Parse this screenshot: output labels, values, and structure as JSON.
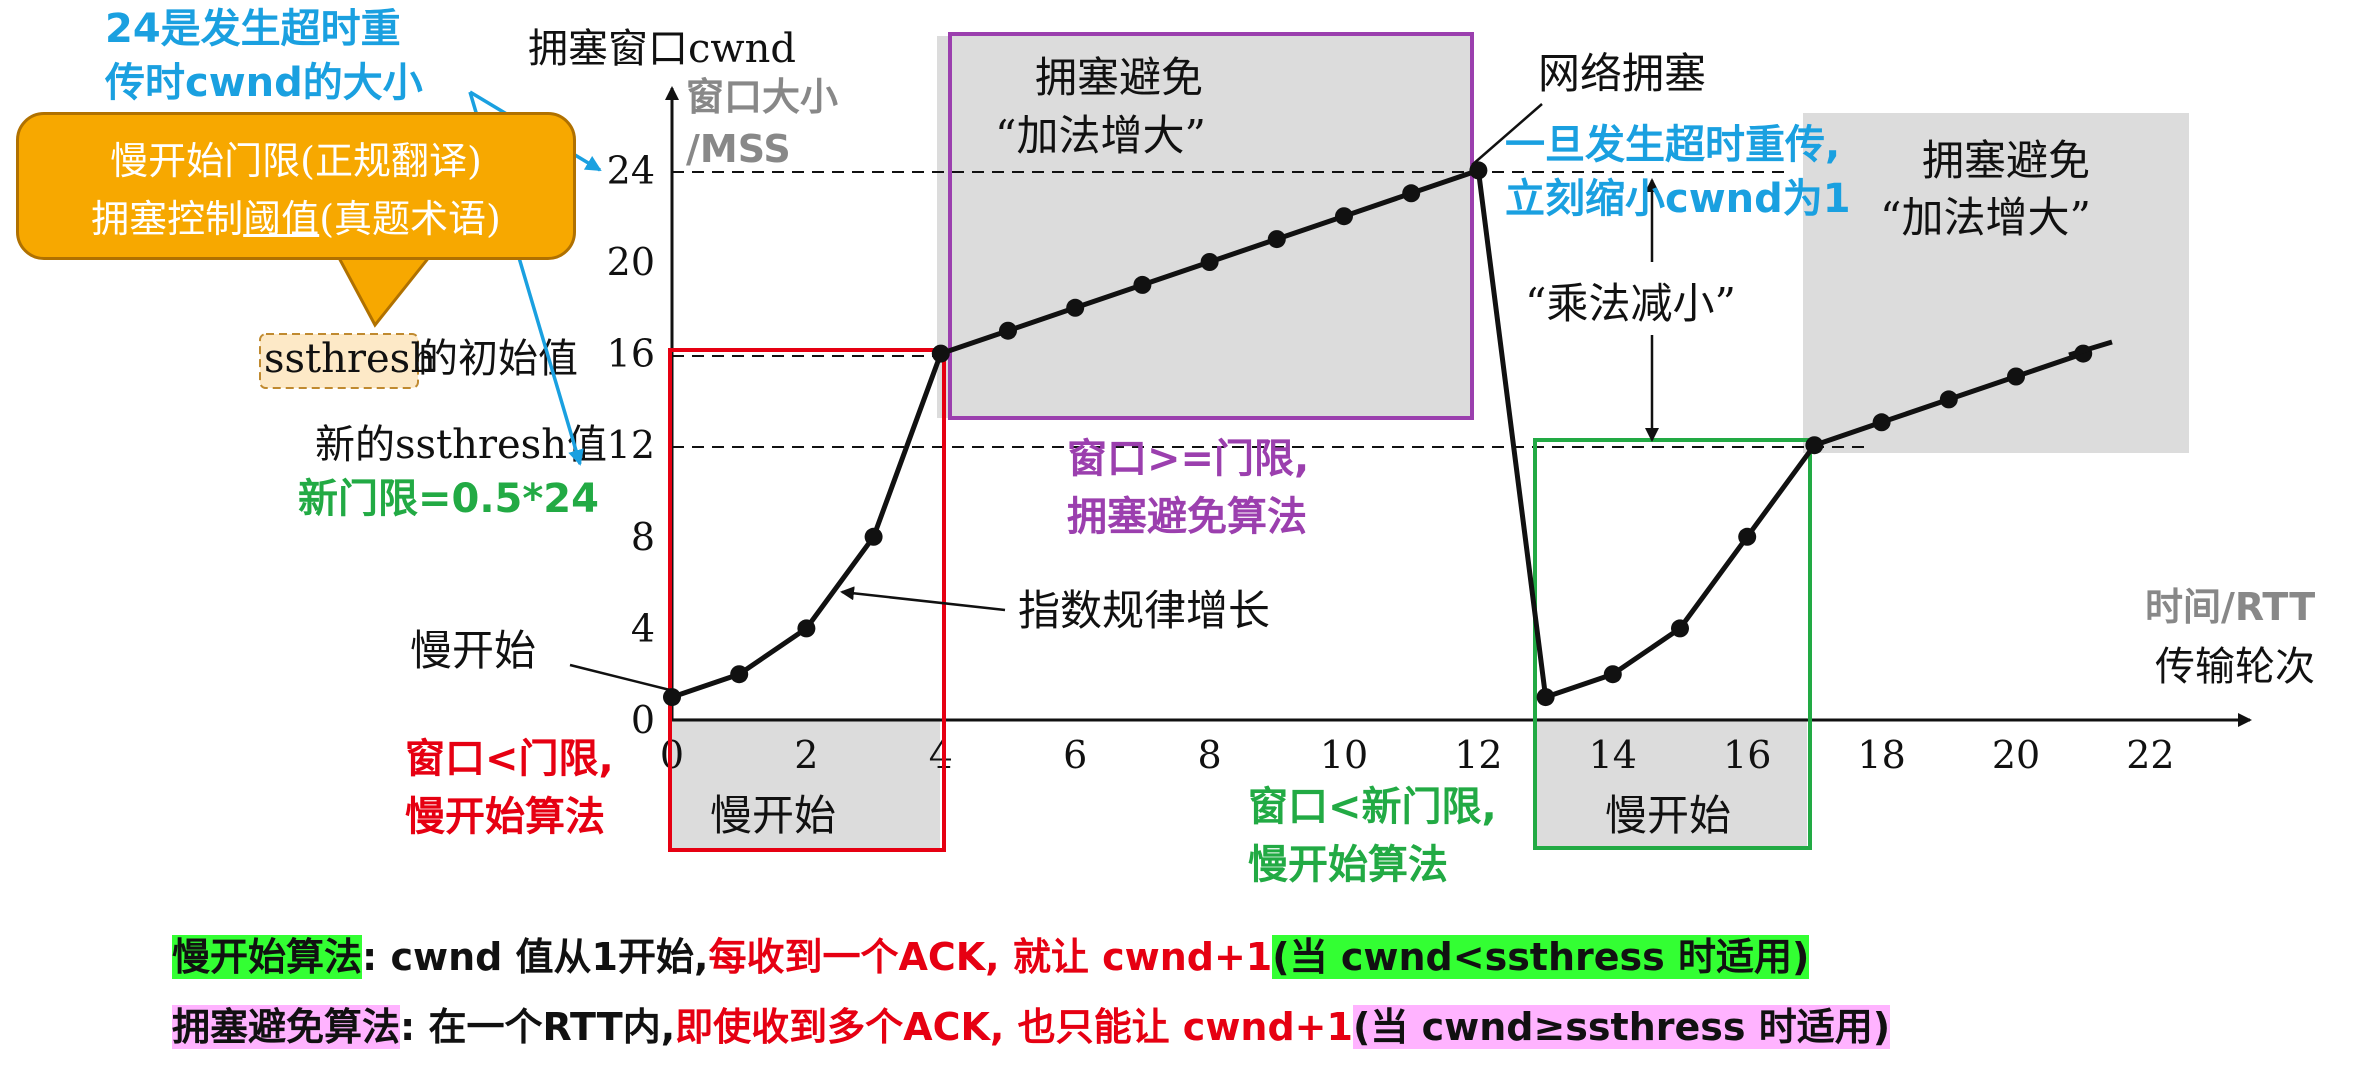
{
  "chart_data": {
    "type": "line",
    "ylabel": "拥塞窗口cwnd",
    "ylabel_sub": "窗口大小/MSS",
    "xlabel": "传输轮次",
    "xlabel_sub": "时间/RTT",
    "x_ticks": [
      0,
      2,
      4,
      6,
      8,
      10,
      12,
      14,
      16,
      18,
      20,
      22
    ],
    "y_ticks": [
      0,
      4,
      8,
      12,
      16,
      20,
      24
    ],
    "xlim": [
      0,
      23
    ],
    "ylim": [
      0,
      26
    ],
    "series": [
      {
        "x": [
          0,
          1,
          2,
          3,
          4,
          5,
          6,
          7,
          8,
          9,
          10,
          11,
          12,
          13,
          14,
          15,
          16,
          17,
          18,
          19,
          20,
          21
        ],
        "y": [
          1,
          2,
          4,
          8,
          16,
          17,
          18,
          19,
          20,
          21,
          22,
          23,
          24,
          1,
          2,
          4,
          8,
          12,
          13,
          14,
          15,
          16
        ]
      }
    ],
    "ssthresh_initial": 16,
    "ssthresh_new": 12,
    "peak": 24,
    "colors": {
      "line": "#111111",
      "red": "#e60012",
      "purple": "#9b3fae",
      "green": "#22aa44",
      "blue": "#1aa0e0",
      "gray": "#888888",
      "shade": "#dcdcdc"
    }
  },
  "labels": {
    "phase_ss1_box": "慢开始",
    "phase_ss2_box": "慢开始",
    "ca1_title": "拥塞避免",
    "ca1_sub": "“加法增大”",
    "ca2_title": "拥塞避免",
    "ca2_sub": "“加法增大”",
    "network_congestion": "网络拥塞",
    "multiplicative_decrease": "“乘法减小”",
    "exp_growth": "指数规律增长",
    "slow_start_left": "慢开始",
    "ssthresh_word": "ssthresh",
    "ssthresh_initial_suffix": "的初始值",
    "new_ssthresh": "新的ssthresh值",
    "blue_top_1": "24是发生超时重",
    "blue_top_2": "传时cwnd的大小",
    "blue_right_1": "一旦发生超时重传,",
    "blue_right_2": "立刻缩小cwnd为1",
    "green_new_threshold": "新门限=0.5*24",
    "purple_1": "窗口>=门限,",
    "purple_2": "拥塞避免算法",
    "red_1": "窗口<门限,",
    "red_2": "慢开始算法",
    "green_1": "窗口<新门限,",
    "green_2": "慢开始算法"
  },
  "callout": {
    "line1": "慢开始门限(正规翻译)",
    "line2_a": "拥塞控制",
    "line2_u": "阈值",
    "line2_b": "(真题术语)"
  },
  "bottom": {
    "line1_name": "慢开始算法",
    "line1_desc": ": cwnd 值从1开始,",
    "line1_red": "每收到一个ACK, 就让 cwnd+1",
    "line1_cond": "(当 cwnd<ssthress 时适用)",
    "line2_name": "拥塞避免算法",
    "line2_desc": ": 在一个RTT内,",
    "line2_red": "即使收到多个ACK, 也只能让 cwnd+1",
    "line2_cond": "(当 cwnd≥ssthress 时适用)"
  }
}
